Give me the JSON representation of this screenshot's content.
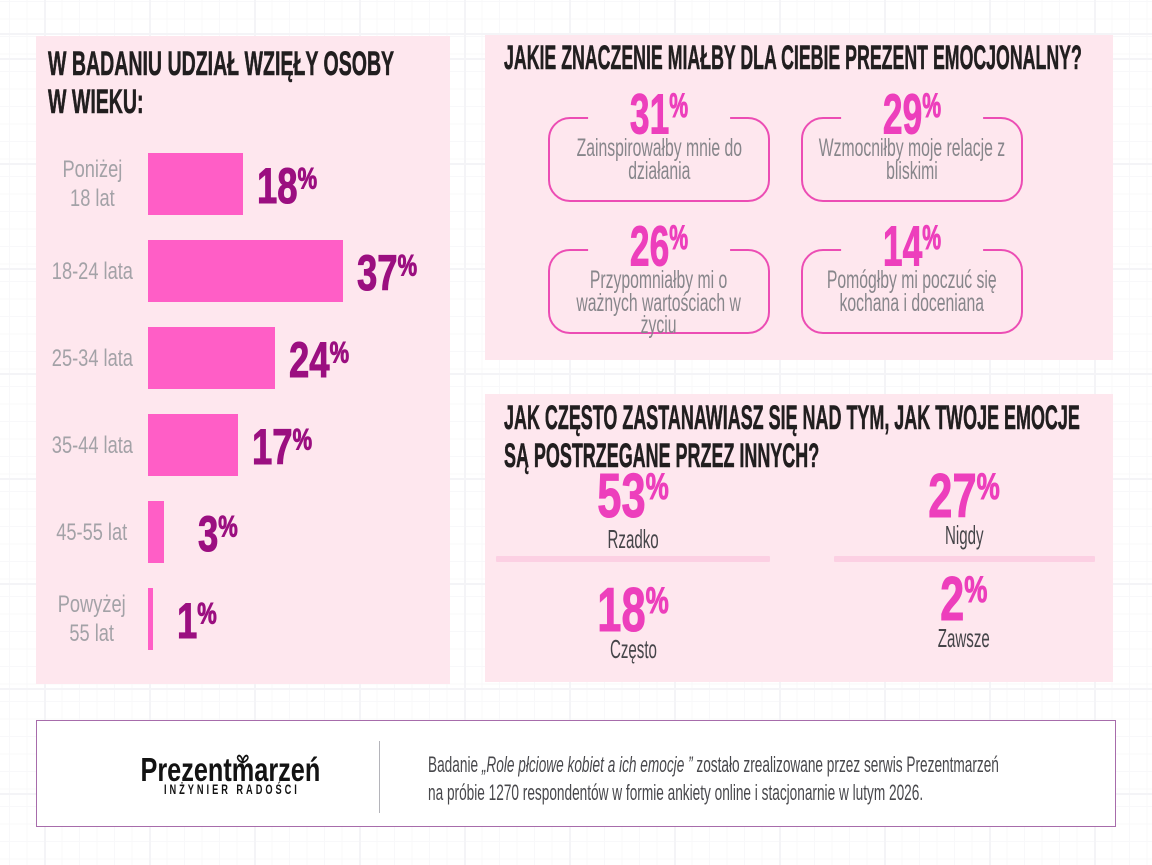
{
  "percent_sign": "%",
  "age_panel": {
    "title": "W BADANIU UDZIAŁ WZIĘŁY OSOBY\nW WIEKU:",
    "rows": [
      {
        "label": "Poniżej\n18 lat",
        "value": "18"
      },
      {
        "label": "18-24 lata",
        "value": "37"
      },
      {
        "label": "25-34 lata",
        "value": "24"
      },
      {
        "label": "35-44 lata",
        "value": "17"
      },
      {
        "label": "45-55 lat",
        "value": "3"
      },
      {
        "label": "Powyżej\n55 lat",
        "value": "1"
      }
    ]
  },
  "meaning_panel": {
    "title": "JAKIE ZNACZENIE MIAŁBY DLA CIEBIE PREZENT EMOCJONALNY?",
    "boxes": [
      {
        "value": "31",
        "text": "Zainspirowałby mnie do\ndziałania"
      },
      {
        "value": "29",
        "text": "Wzmocniłby moje relacje z\nbliskimi"
      },
      {
        "value": "26",
        "text": "Przypomniałby mi o\nważnych wartościach w\nżyciu"
      },
      {
        "value": "14",
        "text": "Pomógłby mi poczuć się\nkochana i doceniana"
      }
    ]
  },
  "frequency_panel": {
    "title": "JAK CZĘSTO ZASTANAWIASZ SIĘ NAD TYM, JAK TWOJE EMOCJE\nSĄ POSTRZEGANE PRZEZ INNYCH?",
    "columns": [
      {
        "stats": [
          {
            "value": "53",
            "label": "Rzadko"
          },
          {
            "value": "18",
            "label": "Często"
          }
        ]
      },
      {
        "stats": [
          {
            "value": "27",
            "label": "Nigdy"
          },
          {
            "value": "2",
            "label": "Zawsze"
          }
        ]
      }
    ]
  },
  "footer": {
    "brand": {
      "prefix": "Prezent",
      "bow_letter": "m",
      "suffix": "arzeń",
      "subtitle": "INŻYNIER RADOŚCI"
    },
    "note": {
      "intro": "Badanie ",
      "quote": "„Role płciowe kobiet a ich emocje ”",
      "rest": " zostało zrealizowane przez serwis Prezentmarzeń",
      "line2": "na próbie 1270 respondentów w formie ankiety online i stacjonarnie w lutym 2026."
    }
  },
  "colors": {
    "panel_background": "#fee7ee",
    "bar": "#ff5ec6",
    "age_percent": "#9b0f80",
    "stat_percent": "#ed3fbc",
    "box_border": "#ec4db4",
    "footer_border": "#a76cab"
  },
  "chart_data": [
    {
      "type": "bar",
      "title": "W BADANIU UDZIAŁ WZIĘŁY OSOBY W WIEKU:",
      "categories": [
        "Poniżej 18 lat",
        "18-24 lata",
        "25-34 lata",
        "35-44 lata",
        "45-55 lat",
        "Powyżej 55 lat"
      ],
      "values": [
        18,
        37,
        24,
        17,
        3,
        1
      ],
      "unit": "%",
      "orientation": "horizontal",
      "xlabel": "",
      "ylabel": "",
      "xlim": [
        0,
        40
      ],
      "grid": false,
      "legend": false
    },
    {
      "type": "table",
      "title": "JAKIE ZNACZENIE MIAŁBY DLA CIEBIE PREZENT EMOCJONALNY?",
      "categories": [
        "Zainspirowałby mnie do działania",
        "Wzmocniłby moje relacje z bliskimi",
        "Przypomniałby mi o ważnych wartościach w życiu",
        "Pomógłby mi poczuć się kochana i doceniana"
      ],
      "values": [
        31,
        29,
        26,
        14
      ],
      "unit": "%"
    },
    {
      "type": "table",
      "title": "JAK CZĘSTO ZASTANAWIASZ SIĘ NAD TYM, JAK TWOJE EMOCJE SĄ POSTRZEGANE PRZEZ INNYCH?",
      "categories": [
        "Rzadko",
        "Nigdy",
        "Często",
        "Zawsze"
      ],
      "values": [
        53,
        27,
        18,
        2
      ],
      "unit": "%"
    }
  ]
}
